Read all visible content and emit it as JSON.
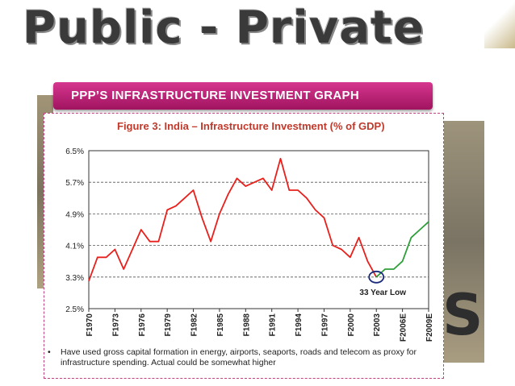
{
  "background": {
    "title_left": "Public",
    "title_dash": "-",
    "title_right": "Private",
    "fragment": "S"
  },
  "banner": {
    "text": "PPP’S INFRASTRUCTURE INVESTMENT GRAPH"
  },
  "chart_data": {
    "type": "line",
    "title": "Figure 3: India – Infrastructure Investment (% of GDP)",
    "xlabel": "",
    "ylabel": "",
    "ylim": [
      2.5,
      6.5
    ],
    "yticks": [
      "2.5%",
      "3.3%",
      "4.1%",
      "4.9%",
      "5.7%",
      "6.5%"
    ],
    "x_tick_labels": [
      "F1970",
      "F1973",
      "F1976",
      "F1979",
      "F1982",
      "F1985",
      "F1988",
      "F1991",
      "F1994",
      "F1997",
      "F2000",
      "F2003",
      "F2006E",
      "F2009E"
    ],
    "x": [
      1970,
      1971,
      1972,
      1973,
      1974,
      1975,
      1976,
      1977,
      1978,
      1979,
      1980,
      1981,
      1982,
      1983,
      1984,
      1985,
      1986,
      1987,
      1988,
      1989,
      1990,
      1991,
      1992,
      1993,
      1994,
      1995,
      1996,
      1997,
      1998,
      1999,
      2000,
      2001,
      2002,
      2003,
      2004,
      2005,
      2006,
      2007,
      2008,
      2009
    ],
    "series": [
      {
        "color": "#e8201c",
        "x": [
          1970,
          1971,
          1972,
          1973,
          1974,
          1975,
          1976,
          1977,
          1978,
          1979,
          1980,
          1981,
          1982,
          1983,
          1984,
          1985,
          1986,
          1987,
          1988,
          1989,
          1990,
          1991,
          1992,
          1993,
          1994,
          1995,
          1996,
          1997,
          1998,
          1999,
          2000,
          2001,
          2002,
          2003
        ],
        "values": [
          3.2,
          3.8,
          3.8,
          4.0,
          3.5,
          4.0,
          4.5,
          4.2,
          4.2,
          5.0,
          5.1,
          5.3,
          5.5,
          4.8,
          4.2,
          4.9,
          5.4,
          5.8,
          5.6,
          5.7,
          5.8,
          5.5,
          6.3,
          5.5,
          5.5,
          5.3,
          5.0,
          4.8,
          4.1,
          4.0,
          3.8,
          4.3,
          3.7,
          3.3
        ]
      },
      {
        "color": "#2e9e3a",
        "x": [
          2003,
          2004,
          2005,
          2006,
          2007,
          2008,
          2009
        ],
        "values": [
          3.3,
          3.5,
          3.5,
          3.7,
          4.3,
          4.5,
          4.7
        ]
      }
    ],
    "annotations": [
      {
        "text": "33 Year Low",
        "x": 2003,
        "y": 3.3
      }
    ],
    "grid": "horizontal-dashed",
    "legend": "none"
  },
  "note": {
    "bullet": "•",
    "text": "Have used gross capital formation in energy, airports, seaports, roads and telecom as proxy for infrastructure spending. Actual could be somewhat higher"
  }
}
